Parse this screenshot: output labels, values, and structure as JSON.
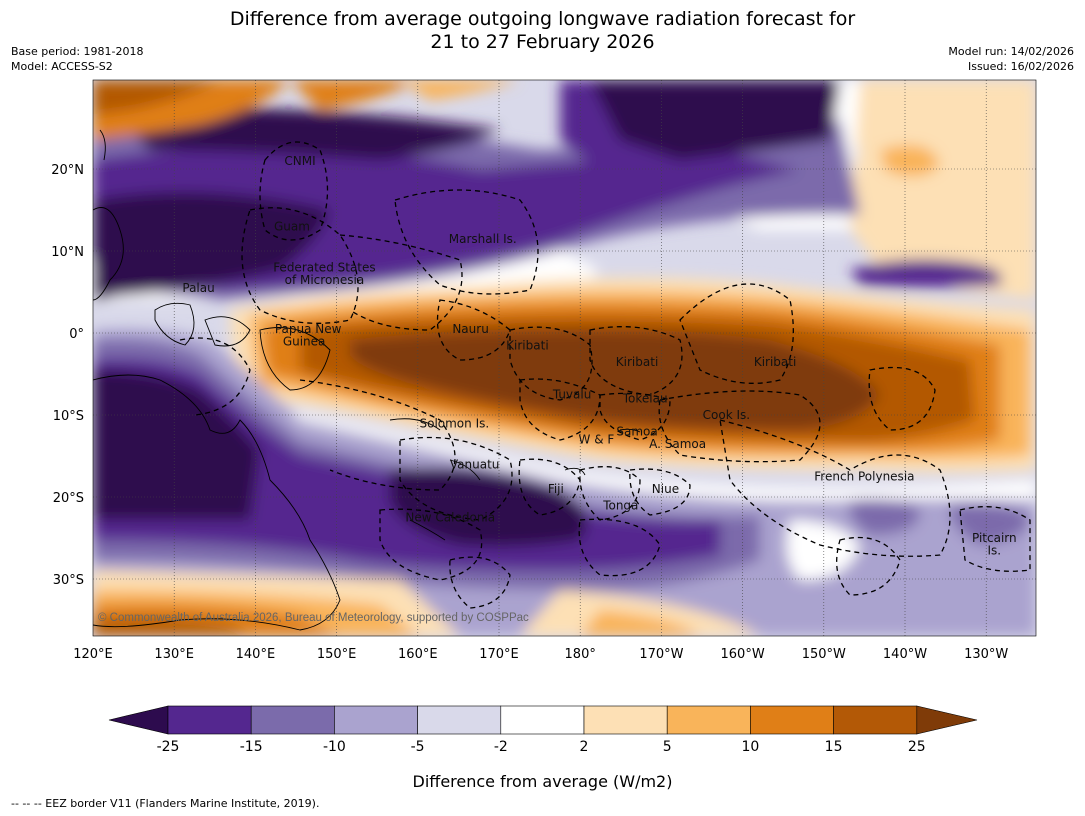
{
  "title_line1": "Difference from average outgoing longwave radiation forecast for",
  "title_line2": "21 to 27 February 2026",
  "base_period": "Base period: 1981-2018",
  "model": "Model: ACCESS-S2",
  "model_run": "Model run: 14/02/2026",
  "issued": "Issued: 16/02/2026",
  "copyright": "© Commonwealth of Australia 2026, Bureau of Meteorology, supported by COSPPac",
  "colorbar_label": "Difference from average (W/m2)",
  "footnote": "-- -- -- EEZ border V11 (Flanders Marine Institute, 2019).",
  "colors": {
    "c1": "#2d0b4e",
    "c2": "#54278f",
    "c3": "#7b6bab",
    "c4": "#aaa3cf",
    "c5": "#d9d9ea",
    "c6": "#ffffff",
    "c7": "#fde0b5",
    "c8": "#f9b45a",
    "c9": "#e07f17",
    "c10": "#b35906",
    "c11": "#7f3b08"
  },
  "lon_ticks": [
    "120°E",
    "130°E",
    "140°E",
    "150°E",
    "160°E",
    "170°E",
    "180°",
    "170°W",
    "160°W",
    "150°W",
    "140°W",
    "130°W"
  ],
  "lat_ticks": [
    "20°N",
    "10°N",
    "0°",
    "10°S",
    "20°S",
    "30°S"
  ],
  "colorbar_ticks": [
    "-25",
    "-15",
    "-10",
    "-5",
    "-2",
    "2",
    "5",
    "10",
    "15",
    "25"
  ],
  "regions": [
    {
      "name": "CNMI",
      "lon": 145.5,
      "lat": 20.5
    },
    {
      "name": "Guam",
      "lon": 144.5,
      "lat": 12.5
    },
    {
      "name": "Marshall Is.",
      "lon": 168,
      "lat": 11
    },
    {
      "name": "Federated States",
      "lon": 148.5,
      "lat": 7.5
    },
    {
      "name": "of Micronesia",
      "lon": 148.5,
      "lat": 6
    },
    {
      "name": "Palau",
      "lon": 133,
      "lat": 5
    },
    {
      "name": "Papua New",
      "lon": 146.5,
      "lat": 0
    },
    {
      "name": "Guinea",
      "lon": 146,
      "lat": -1.5
    },
    {
      "name": "Nauru",
      "lon": 166.5,
      "lat": 0
    },
    {
      "name": "Kiribati",
      "lon": 173.5,
      "lat": -2
    },
    {
      "name": "Kiribati",
      "lon": 187,
      "lat": -4
    },
    {
      "name": "Kiribati",
      "lon": 204,
      "lat": -4
    },
    {
      "name": "Tuvalu",
      "lon": 179,
      "lat": -8
    },
    {
      "name": "Tokelau",
      "lon": 188,
      "lat": -8.5
    },
    {
      "name": "Cook Is.",
      "lon": 198,
      "lat": -10.5
    },
    {
      "name": "Solomon Is.",
      "lon": 164.5,
      "lat": -11.5
    },
    {
      "name": "W & F",
      "lon": 182,
      "lat": -13.5
    },
    {
      "name": "Samoa",
      "lon": 187,
      "lat": -12.5
    },
    {
      "name": "A. Samoa",
      "lon": 192,
      "lat": -14
    },
    {
      "name": "Vanuatu",
      "lon": 167,
      "lat": -16.5
    },
    {
      "name": "Fiji",
      "lon": 177,
      "lat": -19.5
    },
    {
      "name": "Niue",
      "lon": 190.5,
      "lat": -19.5
    },
    {
      "name": "Tonga",
      "lon": 185,
      "lat": -21.5
    },
    {
      "name": "New Caledonia",
      "lon": 164,
      "lat": -23
    },
    {
      "name": "French Polynesia",
      "lon": 215,
      "lat": -18
    },
    {
      "name": "Pitcairn",
      "lon": 231,
      "lat": -25.5
    },
    {
      "name": "Is.",
      "lon": 231,
      "lat": -27
    }
  ]
}
